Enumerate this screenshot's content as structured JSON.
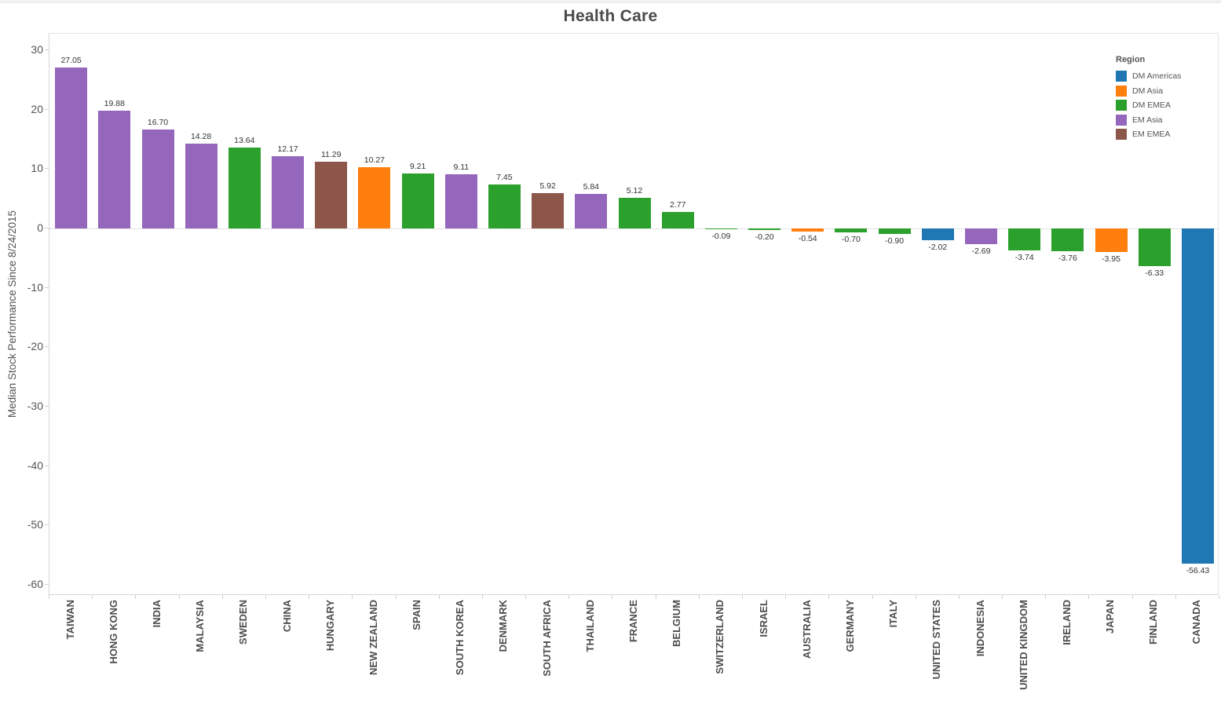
{
  "chart_data": {
    "type": "bar",
    "title": "Health Care",
    "xlabel": "",
    "ylabel": "Median Stock Performance Since 8/24/2015",
    "ylim": [
      -60,
      30
    ],
    "yticks": [
      30,
      20,
      10,
      0,
      -10,
      -20,
      -30,
      -40,
      -50,
      -60
    ],
    "ytick_labels": [
      "30",
      "20",
      "10",
      "0",
      "-10",
      "-20",
      "-30",
      "-40",
      "-50",
      "-60"
    ],
    "grid": false,
    "zero_line_style": "dotted",
    "legend_position": "top-right-inside",
    "legend_title": "Region",
    "legend": [
      {
        "label": "DM Americas",
        "color": "#1f77b4"
      },
      {
        "label": "DM Asia",
        "color": "#ff7f0e"
      },
      {
        "label": "DM EMEA",
        "color": "#2ca02c"
      },
      {
        "label": "EM Asia",
        "color": "#9467bd"
      },
      {
        "label": "EM EMEA",
        "color": "#8c564b"
      }
    ],
    "categories": [
      "TAIWAN",
      "HONG KONG",
      "INDIA",
      "MALAYSIA",
      "SWEDEN",
      "CHINA",
      "HUNGARY",
      "NEW ZEALAND",
      "SPAIN",
      "SOUTH KOREA",
      "DENMARK",
      "SOUTH AFRICA",
      "THAILAND",
      "FRANCE",
      "BELGIUM",
      "SWITZERLAND",
      "ISRAEL",
      "AUSTRALIA",
      "GERMANY",
      "ITALY",
      "UNITED STATES",
      "INDONESIA",
      "UNITED KINGDOM",
      "IRELAND",
      "JAPAN",
      "FINLAND",
      "CANADA"
    ],
    "values": [
      27.05,
      19.88,
      16.7,
      14.28,
      13.64,
      12.17,
      11.29,
      10.27,
      9.21,
      9.11,
      7.45,
      5.92,
      5.84,
      5.12,
      2.77,
      -0.09,
      -0.2,
      -0.54,
      -0.7,
      -0.9,
      -2.02,
      -2.69,
      -3.74,
      -3.76,
      -3.95,
      -6.33,
      -56.43
    ],
    "value_labels": [
      "27.05",
      "19.88",
      "16.70",
      "14.28",
      "13.64",
      "12.17",
      "11.29",
      "10.27",
      "9.21",
      "9.11",
      "7.45",
      "5.92",
      "5.84",
      "5.12",
      "2.77",
      "-0.09",
      "-0.20",
      "-0.54",
      "-0.70",
      "-0.90",
      "-2.02",
      "-2.69",
      "-3.74",
      "-3.76",
      "-3.95",
      "-6.33",
      "-56.43"
    ],
    "bar_regions": [
      "EM Asia",
      "EM Asia",
      "EM Asia",
      "EM Asia",
      "DM EMEA",
      "EM Asia",
      "EM EMEA",
      "DM Asia",
      "DM EMEA",
      "EM Asia",
      "DM EMEA",
      "EM EMEA",
      "EM Asia",
      "DM EMEA",
      "DM EMEA",
      "DM EMEA",
      "DM EMEA",
      "DM Asia",
      "DM EMEA",
      "DM EMEA",
      "DM Americas",
      "EM Asia",
      "DM EMEA",
      "DM EMEA",
      "DM Asia",
      "DM EMEA",
      "DM Americas"
    ]
  }
}
